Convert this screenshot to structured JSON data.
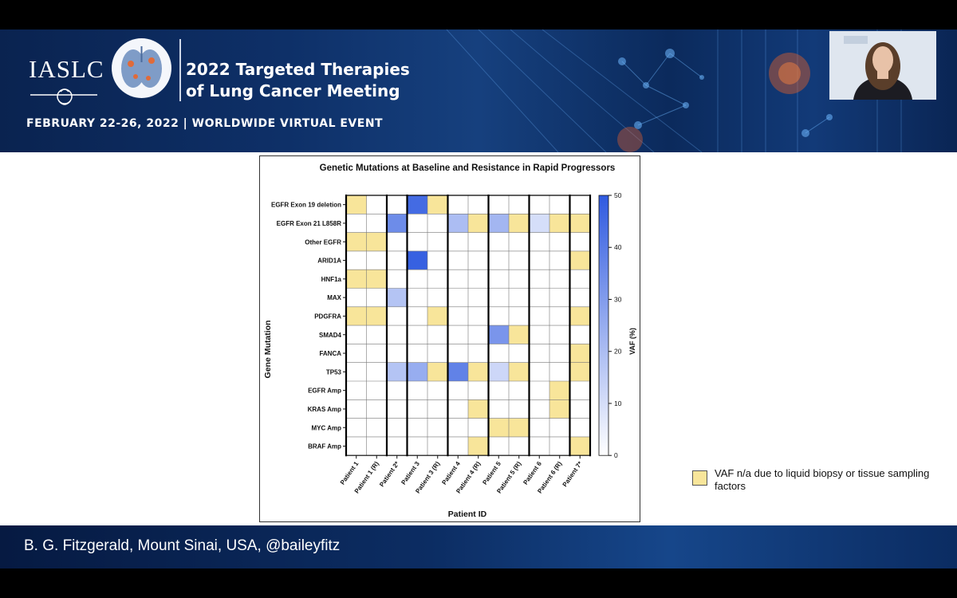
{
  "banner": {
    "org": "IASLC",
    "title_line1": "2022 Targeted Therapies",
    "title_line2": "of Lung Cancer Meeting",
    "event_line": "FEBRUARY 22-26, 2022 | WORLDWIDE VIRTUAL EVENT"
  },
  "footer": {
    "presenter": "B. G. Fitzgerald, Mount Sinai, USA, @baileyfitz"
  },
  "legend_note": {
    "text": "VAF n/a due to liquid biopsy or tissue sampling factors",
    "color": "#f8e59a"
  },
  "colors": {
    "vaf_max": "#2f5ae0",
    "na_yellow": "#f8e59a",
    "banner_navy": "#0e3068"
  },
  "chart_data": {
    "type": "heatmap",
    "title": "Genetic Mutations at Baseline and Resistance in Rapid Progressors",
    "xlabel": "Patient ID",
    "ylabel": "Gene Mutation",
    "colorbar_label": "VAF (%)",
    "colorbar_range": [
      0,
      50
    ],
    "colorbar_ticks": [
      "0",
      "10",
      "20",
      "30",
      "40",
      "50"
    ],
    "columns": [
      "Patient 1",
      "Patient 1 (R)",
      "Patient 2*",
      "Patient 3",
      "Patient 3 (R)",
      "Patient 4",
      "Patient 4 (R)",
      "Patient 5",
      "Patient 5 (R)",
      "Patient 6",
      "Patient 6 (R)",
      "Patient 7*"
    ],
    "rows": [
      "EGFR Exon 19 deletion",
      "EGFR Exon 21 L858R",
      "Other EGFR",
      "ARID1A",
      "HNF1a",
      "MAX",
      "PDGFRA",
      "SMAD4",
      "FANCA",
      "TP53",
      "EGFR Amp",
      "KRAS Amp",
      "MYC Amp",
      "BRAF Amp"
    ],
    "matrix": [
      [
        "na",
        0,
        0,
        45,
        "na",
        0,
        0,
        0,
        0,
        0,
        0,
        0
      ],
      [
        0,
        0,
        35,
        0,
        0,
        20,
        "na",
        22,
        "na",
        10,
        "na",
        "na"
      ],
      [
        "na",
        "na",
        0,
        0,
        0,
        0,
        0,
        0,
        0,
        0,
        0,
        0
      ],
      [
        0,
        0,
        0,
        48,
        0,
        0,
        0,
        0,
        0,
        0,
        0,
        "na"
      ],
      [
        "na",
        "na",
        0,
        0,
        0,
        0,
        0,
        0,
        0,
        0,
        0,
        0
      ],
      [
        0,
        0,
        18,
        0,
        0,
        0,
        0,
        0,
        0,
        0,
        0,
        0
      ],
      [
        "na",
        "na",
        0,
        0,
        "na",
        0,
        0,
        0,
        0,
        0,
        0,
        "na"
      ],
      [
        0,
        0,
        0,
        0,
        0,
        0,
        0,
        32,
        "na",
        0,
        0,
        0
      ],
      [
        0,
        0,
        0,
        0,
        0,
        0,
        0,
        0,
        0,
        0,
        0,
        "na"
      ],
      [
        0,
        0,
        18,
        25,
        "na",
        38,
        "na",
        12,
        "na",
        0,
        0,
        "na"
      ],
      [
        0,
        0,
        0,
        0,
        0,
        0,
        0,
        0,
        0,
        0,
        "na",
        0
      ],
      [
        0,
        0,
        0,
        0,
        0,
        0,
        "na",
        0,
        0,
        0,
        "na",
        0
      ],
      [
        0,
        0,
        0,
        0,
        0,
        0,
        0,
        "na",
        "na",
        0,
        0,
        0
      ],
      [
        0,
        0,
        0,
        0,
        0,
        0,
        "na",
        0,
        0,
        0,
        0,
        "na"
      ]
    ],
    "patient_groups": [
      [
        0,
        1
      ],
      [
        2,
        2
      ],
      [
        3,
        4
      ],
      [
        5,
        6
      ],
      [
        7,
        8
      ],
      [
        9,
        10
      ],
      [
        11,
        11
      ]
    ],
    "grid": true,
    "legend": "right colorbar"
  }
}
